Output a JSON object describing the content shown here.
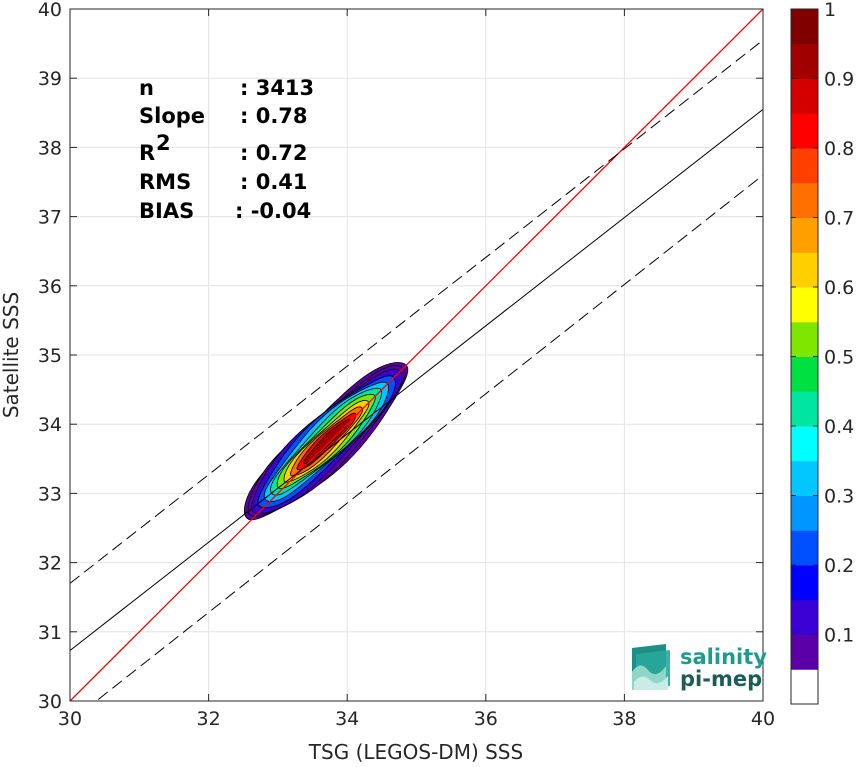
{
  "chart_data": {
    "type": "heatmap",
    "xlabel": "TSG (LEGOS-DM) SSS",
    "ylabel": "Satellite SSS",
    "xlim": [
      30,
      40
    ],
    "ylim": [
      30,
      40
    ],
    "x_ticks": [
      "30",
      "32",
      "34",
      "36",
      "38",
      "40"
    ],
    "y_ticks": [
      "30",
      "31",
      "32",
      "33",
      "34",
      "35",
      "36",
      "37",
      "38",
      "39",
      "40"
    ],
    "grid": true,
    "stats": [
      {
        "label": "n",
        "value": ": 3413"
      },
      {
        "label": "Slope",
        "value": ": 0.78"
      },
      {
        "label": "R",
        "sup": "2",
        "value": ": 0.72"
      },
      {
        "label": "RMS",
        "value": ": 0.41"
      },
      {
        "label": "BIAS",
        "value": ": -0.04"
      }
    ],
    "lines": {
      "identity": {
        "slope": 1,
        "intercept": 0,
        "color": "#ff0000"
      },
      "regression": {
        "x": [
          30,
          40
        ],
        "y": [
          30.73,
          38.55
        ],
        "color": "#000000"
      },
      "upper_bound": {
        "x": [
          30,
          40
        ],
        "y": [
          31.7,
          39.55
        ],
        "dash": true
      },
      "lower_bound": {
        "x": [
          30,
          40
        ],
        "y": [
          29.7,
          37.6
        ],
        "dash": true
      }
    },
    "density_levels": [
      0.05,
      0.1,
      0.2,
      0.3,
      0.4,
      0.5,
      0.6,
      0.7,
      0.8,
      0.9
    ],
    "density_peak": {
      "x": 33.7,
      "y": 33.75,
      "value": 1.0
    },
    "colorbar": {
      "range": [
        0,
        1
      ],
      "tick_labels": [
        "0.1",
        "0.2",
        "0.3",
        "0.4",
        "0.5",
        "0.6",
        "0.7",
        "0.8",
        "0.9",
        "1"
      ],
      "colors": [
        "#ffffff",
        "#5b00a8",
        "#3a00d4",
        "#0000ff",
        "#0050ff",
        "#0096ff",
        "#00c8ff",
        "#00ffff",
        "#00e6a0",
        "#00e040",
        "#7fe600",
        "#ffff00",
        "#ffd000",
        "#ffa000",
        "#ff7000",
        "#ff4000",
        "#ff0000",
        "#d40000",
        "#a00000",
        "#800000"
      ]
    },
    "logo": {
      "line1": "salinity",
      "line2": "pi-mep"
    }
  }
}
